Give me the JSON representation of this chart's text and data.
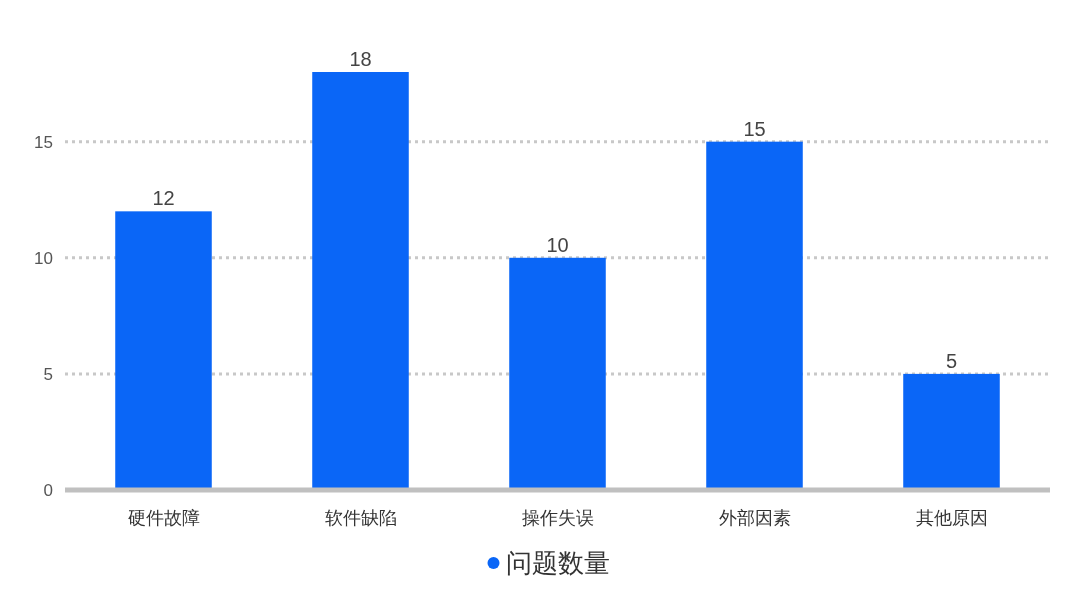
{
  "chart_data": {
    "type": "bar",
    "categories": [
      "硬件故障",
      "软件缺陷",
      "操作失误",
      "外部因素",
      "其他原因"
    ],
    "series": [
      {
        "name": "问题数量",
        "color": "#0a66f7",
        "values": [
          12,
          18,
          10,
          15,
          5
        ]
      }
    ],
    "ylim": [
      0,
      18
    ],
    "yticks": [
      0,
      5,
      10,
      15
    ],
    "grid": "y",
    "legend": "bottom",
    "data_labels": true
  }
}
